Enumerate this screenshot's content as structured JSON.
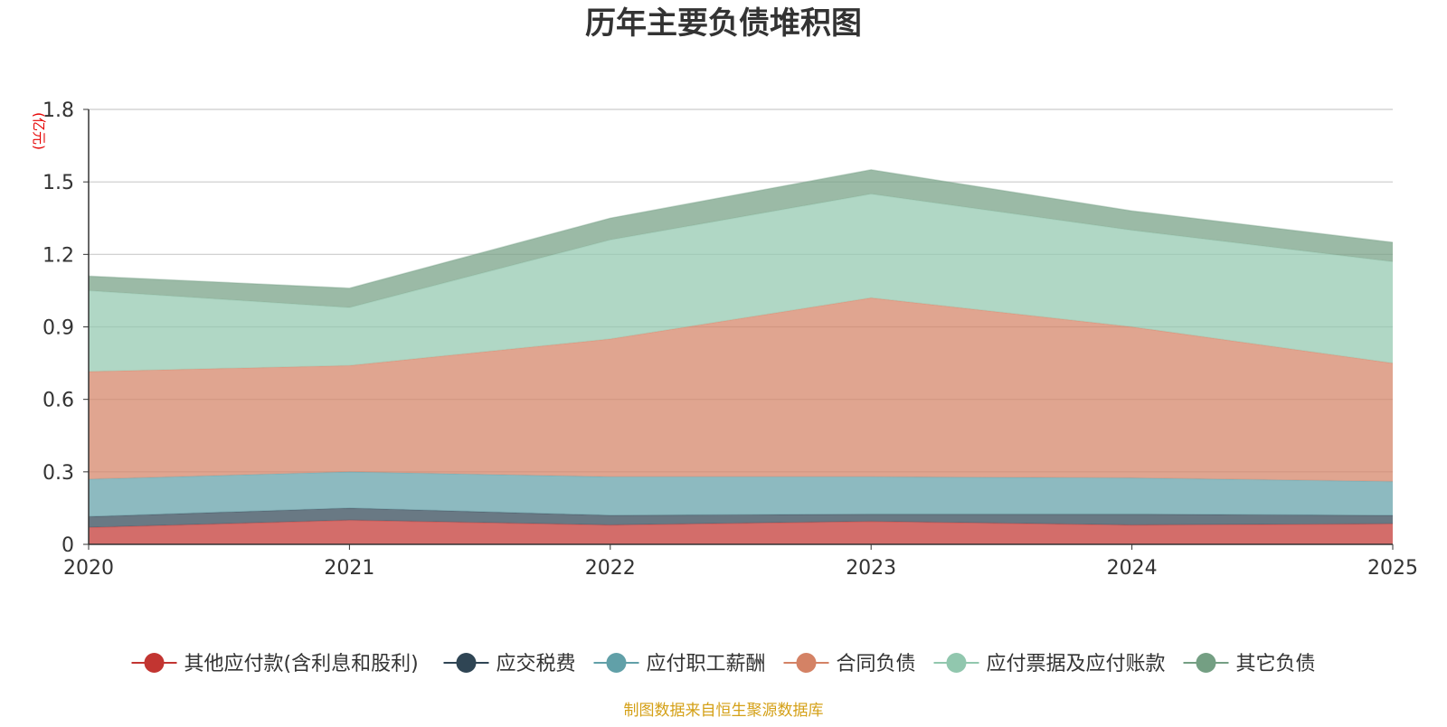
{
  "chart_data": {
    "type": "area",
    "stacked": true,
    "title": "历年主要负债堆积图",
    "unit_label": "(亿元)",
    "source": "制图数据来自恒生聚源数据库",
    "x": [
      "2020",
      "2021",
      "2022",
      "2023",
      "2024",
      "2025"
    ],
    "ylim": [
      0,
      1.8
    ],
    "yticks": [
      "0",
      "0.3",
      "0.6",
      "0.9",
      "1.2",
      "1.5",
      "1.8"
    ],
    "grid": true,
    "legend_position": "bottom",
    "series": [
      {
        "name": "其他应付款(含利息和股利)",
        "color": "#c23531",
        "values": [
          0.07,
          0.1,
          0.08,
          0.095,
          0.08,
          0.085
        ]
      },
      {
        "name": "应交税费",
        "color": "#2f4554",
        "values": [
          0.045,
          0.05,
          0.04,
          0.03,
          0.045,
          0.035
        ]
      },
      {
        "name": "应付职工薪酬",
        "color": "#61a0a8",
        "values": [
          0.155,
          0.15,
          0.16,
          0.155,
          0.15,
          0.14
        ]
      },
      {
        "name": "合同负债",
        "color": "#d48265",
        "values": [
          0.445,
          0.44,
          0.57,
          0.74,
          0.625,
          0.49
        ]
      },
      {
        "name": "应付票据及应付账款",
        "color": "#91c7ae",
        "values": [
          0.335,
          0.24,
          0.41,
          0.43,
          0.4,
          0.42
        ]
      },
      {
        "name": "其它负债",
        "color": "#749f83",
        "values": [
          0.06,
          0.08,
          0.09,
          0.1,
          0.08,
          0.08
        ]
      }
    ]
  }
}
